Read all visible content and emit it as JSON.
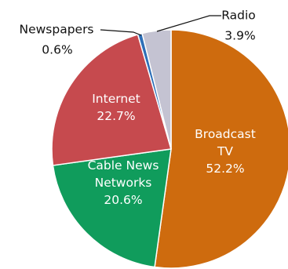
{
  "chart_data": {
    "type": "pie",
    "title": "",
    "slices": [
      {
        "label": "Broadcast TV",
        "label_lines": [
          "Broadcast",
          "TV"
        ],
        "value": 52.2,
        "display": "52.2%",
        "color": "#CE6B0E"
      },
      {
        "label": "Cable News Networks",
        "label_lines": [
          "Cable News",
          "Networks"
        ],
        "value": 20.6,
        "display": "20.6%",
        "color": "#109C5C"
      },
      {
        "label": "Internet",
        "label_lines": [
          "Internet"
        ],
        "value": 22.7,
        "display": "22.7%",
        "color": "#C64A4E"
      },
      {
        "label": "Newspapers",
        "label_lines": [
          "Newspapers"
        ],
        "value": 0.6,
        "display": "0.6%",
        "color": "#2E6FB7"
      },
      {
        "label": "Radio",
        "label_lines": [
          "Radio"
        ],
        "value": 3.9,
        "display": "3.9%",
        "color": "#C4C3D2"
      }
    ],
    "start_angle": "12 o'clock",
    "direction": "clockwise",
    "legend": "none (labels on slices)"
  }
}
